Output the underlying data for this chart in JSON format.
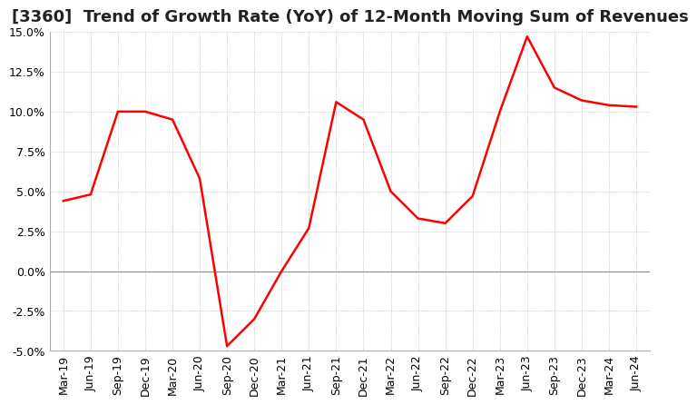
{
  "title": "[3360]  Trend of Growth Rate (YoY) of 12-Month Moving Sum of Revenues",
  "x_labels": [
    "Mar-19",
    "Jun-19",
    "Sep-19",
    "Dec-19",
    "Mar-20",
    "Jun-20",
    "Sep-20",
    "Dec-20",
    "Mar-21",
    "Jun-21",
    "Sep-21",
    "Dec-21",
    "Mar-22",
    "Jun-22",
    "Sep-22",
    "Dec-22",
    "Mar-23",
    "Jun-23",
    "Sep-23",
    "Dec-23",
    "Mar-24",
    "Jun-24"
  ],
  "y_values": [
    4.4,
    4.8,
    10.0,
    10.0,
    9.5,
    5.8,
    -4.7,
    -3.0,
    0.0,
    2.7,
    10.6,
    9.5,
    5.0,
    3.3,
    3.0,
    4.7,
    10.0,
    14.7,
    11.5,
    10.7,
    10.4,
    10.3
  ],
  "line_color": "#ff0000",
  "ylim": [
    -5.0,
    15.0
  ],
  "yticks": [
    -5.0,
    -2.5,
    0.0,
    2.5,
    5.0,
    7.5,
    10.0,
    12.5,
    15.0
  ],
  "background_color": "#ffffff",
  "grid_color": "#aaaaaa",
  "title_fontsize": 13,
  "tick_fontsize": 9
}
